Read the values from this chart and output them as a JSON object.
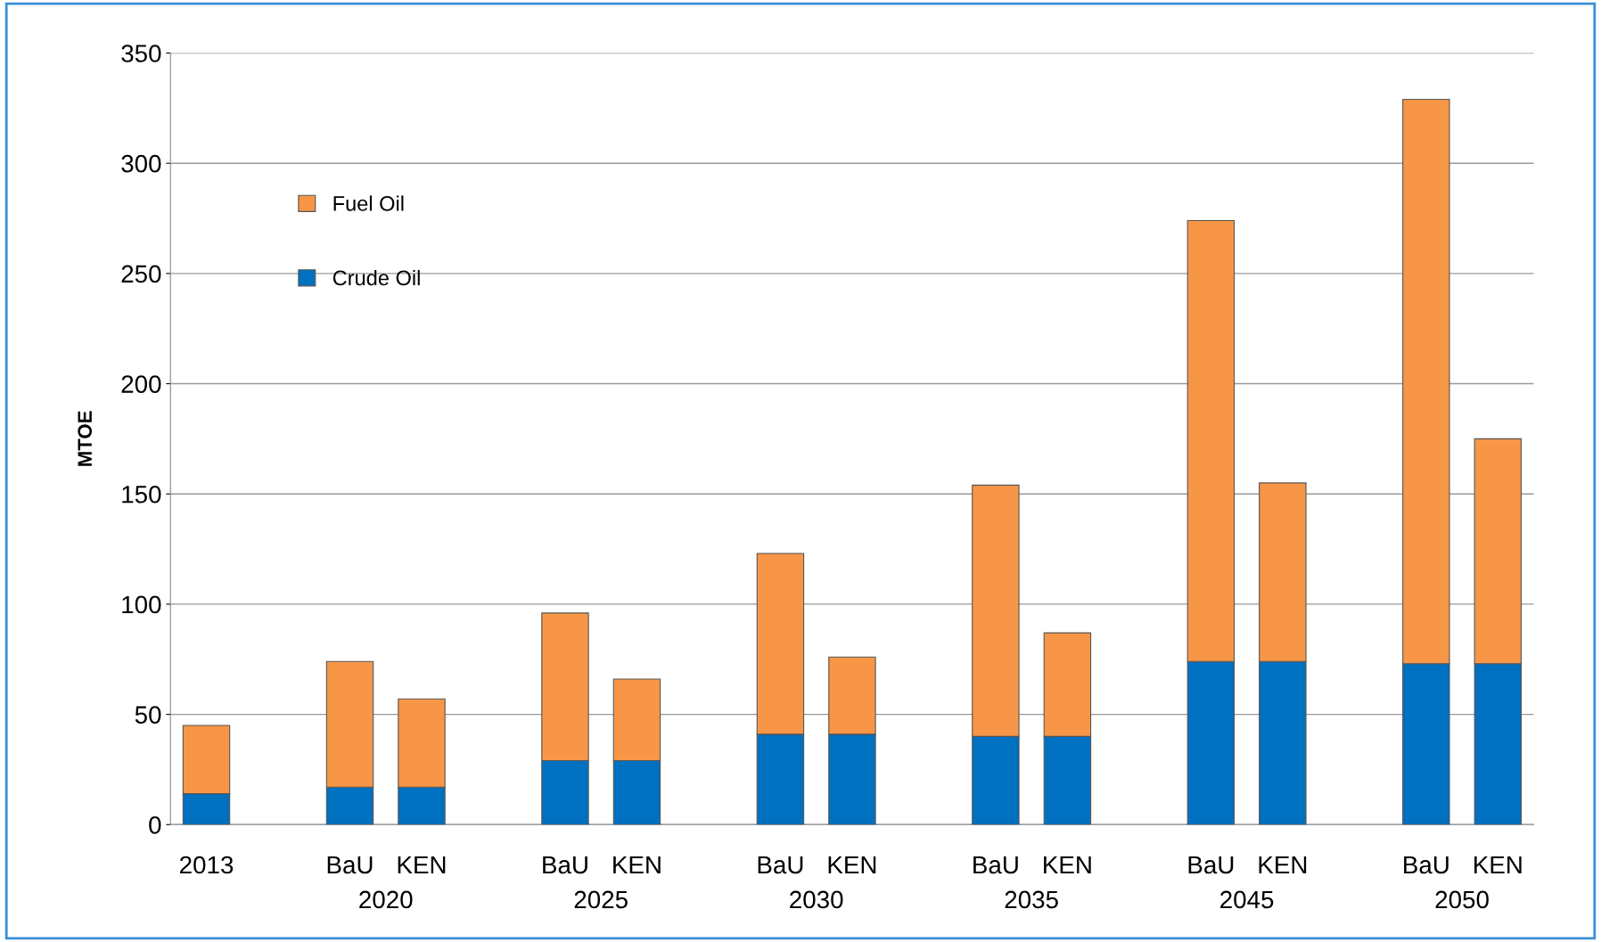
{
  "chart_data": {
    "type": "bar",
    "stacked": true,
    "ylabel": "MTOE",
    "categories": [
      "2013",
      null,
      "BaU",
      "KEN",
      null,
      "BaU",
      "KEN",
      null,
      "BaU",
      "KEN",
      null,
      "BaU",
      "KEN",
      null,
      "BaU",
      "KEN",
      null,
      "BaU",
      "KEN"
    ],
    "series": [
      {
        "name": "Crude Oil",
        "color": "#0070c0",
        "values": [
          14,
          null,
          17,
          17,
          null,
          29,
          29,
          null,
          41,
          41,
          null,
          40,
          40,
          null,
          74,
          74,
          null,
          73,
          73
        ]
      },
      {
        "name": "Fuel Oil",
        "color": "#f79646",
        "values": [
          31,
          null,
          57,
          40,
          null,
          67,
          37,
          null,
          82,
          35,
          null,
          114,
          47,
          null,
          200,
          81,
          null,
          256,
          102
        ]
      }
    ],
    "annotations": [
      "2020",
      "2025",
      "2030",
      "2035",
      "2045",
      "2050"
    ],
    "ylim": [
      0,
      350
    ],
    "yticks": [
      0,
      50,
      100,
      150,
      200,
      250,
      300,
      350
    ],
    "grid": "y",
    "legend": "top left"
  }
}
